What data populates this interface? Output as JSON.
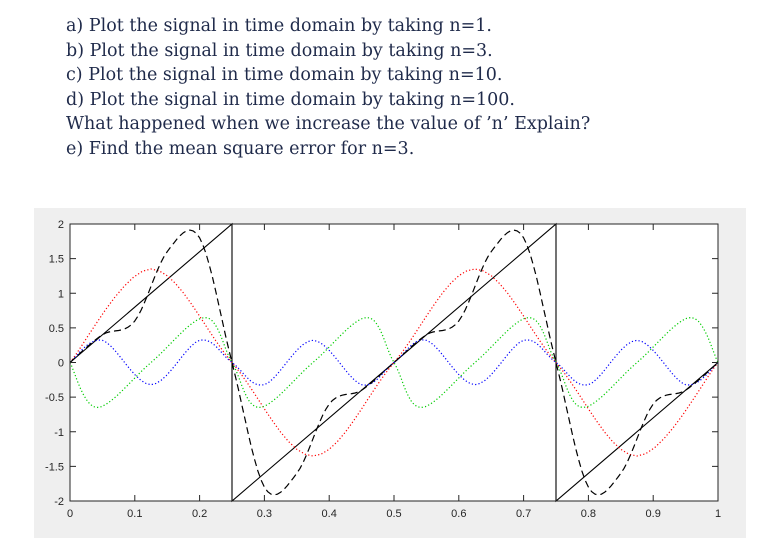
{
  "questions": [
    "a) Plot the signal in time domain by taking n=1.",
    "b) Plot the signal in time domain by taking n=3.",
    "c) Plot the signal in time domain by taking n=10.",
    "d) Plot the signal in time domain by taking n=100.",
    "What happened when we increase the value of ’n’ Explain?",
    "e) Find the mean square error for n=3."
  ],
  "chart_data": {
    "type": "line",
    "title": "",
    "xlabel": "",
    "ylabel": "",
    "xlim": [
      0,
      1
    ],
    "ylim": [
      -2,
      2
    ],
    "xticks": [
      0,
      0.1,
      0.2,
      0.3,
      0.4,
      0.5,
      0.6,
      0.7,
      0.8,
      0.9,
      1
    ],
    "yticks": [
      -2,
      -1.5,
      -1,
      -0.5,
      0,
      0.5,
      1,
      1.5,
      2
    ],
    "xtick_labels": [
      "0",
      "0.1",
      "0.2",
      "0.3",
      "0.4",
      "0.5",
      "0.6",
      "0.7",
      "0.8",
      "0.9",
      "1"
    ],
    "ytick_labels": [
      "-2",
      "-1.5",
      "-1",
      "-0.5",
      "0",
      "0.5",
      "1",
      "1.5",
      "2"
    ],
    "grid": false,
    "background": "#efefef",
    "series": [
      {
        "color": "#000000",
        "style": "solid",
        "x": [
          0,
          0.25,
          0.25,
          0.75,
          0.75,
          1.0
        ],
        "values": [
          0,
          2,
          -2,
          2,
          -2,
          0
        ]
      },
      {
        "color": "#ff0000",
        "style": "dotted",
        "x": [
          0,
          0.125,
          0.25,
          0.375,
          0.5,
          0.625,
          0.75,
          0.875,
          1.0
        ],
        "values": [
          0,
          1.35,
          0,
          -1.35,
          0,
          1.35,
          0,
          -1.35,
          0
        ]
      },
      {
        "color": "#00cc00",
        "style": "dotted",
        "x": [
          0,
          0.0417,
          0.125,
          0.2083,
          0.25,
          0.2917,
          0.375,
          0.4583,
          0.5,
          0.5417,
          0.625,
          0.7083,
          0.75,
          0.7917,
          0.875,
          0.9583,
          1.0
        ],
        "values": [
          0,
          -0.65,
          0,
          0.65,
          0,
          -0.65,
          0,
          0.65,
          0,
          -0.65,
          0,
          0.65,
          0,
          -0.65,
          0,
          0.65,
          0
        ]
      },
      {
        "color": "#0000ff",
        "style": "dotted",
        "x": [
          0,
          0.05,
          0.125,
          0.2,
          0.25,
          0.3,
          0.375,
          0.45,
          0.5,
          0.55,
          0.625,
          0.7,
          0.75,
          0.8,
          0.875,
          0.95,
          1.0
        ],
        "values": [
          0,
          0.32,
          -0.32,
          0.32,
          0,
          -0.32,
          0.32,
          -0.32,
          0,
          0.32,
          -0.32,
          0.32,
          0,
          -0.32,
          0.32,
          -0.32,
          0
        ]
      },
      {
        "color": "#000000",
        "style": "dashed",
        "x": [
          0,
          0.05,
          0.1,
          0.15,
          0.2,
          0.25,
          0.3,
          0.35,
          0.4,
          0.45,
          0.5,
          0.55,
          0.6,
          0.65,
          0.7,
          0.75,
          0.8,
          0.85,
          0.9,
          0.95,
          1.0
        ],
        "values": [
          0,
          0.4,
          0.6,
          1.6,
          1.8,
          0,
          -1.8,
          -1.6,
          -0.6,
          -0.4,
          0,
          0.4,
          0.6,
          1.6,
          1.8,
          0,
          -1.8,
          -1.6,
          -0.6,
          -0.4,
          0
        ]
      }
    ]
  }
}
